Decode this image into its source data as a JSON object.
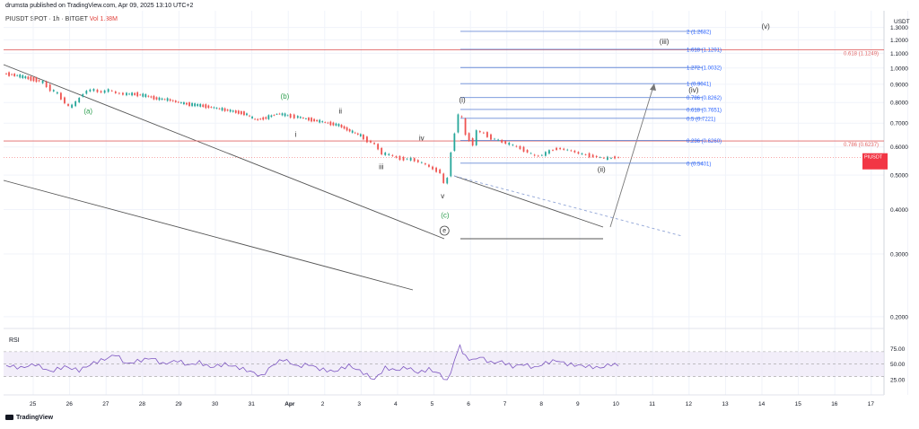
{
  "header": {
    "publisher": "drumsta published on TradingView.com, Apr 09, 2025 13:10 UTC+2",
    "symbol": "PIUSDT SPOT · 1h · BITGET",
    "volume_label": "Vol",
    "volume_value": "1.38",
    "volume_unit": "M"
  },
  "footer": {
    "brand": "TradingView"
  },
  "colors": {
    "up": "#26a69a",
    "down": "#ef5350",
    "fib": "#2962ff",
    "red_line": "#e06666",
    "trend": "#555555",
    "rsi": "#7e57c2",
    "rsi_band": "#ede7f6",
    "label_green": "#2e9e4f"
  },
  "chart_data": {
    "type": "line",
    "title": "",
    "xlabel": "",
    "ylabel": "USDT",
    "price_scale": "log",
    "ylim": [
      0.18,
      1.32
    ],
    "currency": "USDT",
    "x_ticks": [
      "25",
      "26",
      "27",
      "28",
      "29",
      "30",
      "31",
      "Apr",
      "2",
      "3",
      "4",
      "5",
      "6",
      "7",
      "8",
      "9",
      "10",
      "11",
      "12",
      "13",
      "14",
      "15",
      "16",
      "17"
    ],
    "y_ticks": [
      "1.3000",
      "1.2000",
      "1.1000",
      "1.0000",
      "0.9000",
      "0.8000",
      "0.7000",
      "0.6000",
      "0.5000",
      "0.4000",
      "0.3000",
      "0.2000"
    ],
    "series": [
      {
        "values": [
          [
            0.0,
            0.965
          ],
          [
            0.3,
            0.955
          ],
          [
            0.6,
            0.94
          ],
          [
            0.9,
            0.925
          ],
          [
            1.1,
            0.91
          ],
          [
            1.3,
            0.87
          ],
          [
            1.5,
            0.845
          ],
          [
            1.7,
            0.8
          ],
          [
            1.8,
            0.775
          ],
          [
            2.0,
            0.8
          ],
          [
            2.2,
            0.85
          ],
          [
            2.4,
            0.87
          ],
          [
            2.5,
            0.865
          ],
          [
            2.7,
            0.855
          ],
          [
            2.9,
            0.868
          ],
          [
            3.1,
            0.85
          ],
          [
            3.3,
            0.845
          ],
          [
            3.6,
            0.845
          ],
          [
            3.9,
            0.835
          ],
          [
            4.2,
            0.82
          ],
          [
            4.5,
            0.815
          ],
          [
            4.8,
            0.8
          ],
          [
            5.1,
            0.79
          ],
          [
            5.4,
            0.785
          ],
          [
            5.7,
            0.775
          ],
          [
            6.0,
            0.765
          ],
          [
            6.3,
            0.755
          ],
          [
            6.6,
            0.745
          ],
          [
            6.9,
            0.715
          ],
          [
            7.2,
            0.725
          ],
          [
            7.5,
            0.745
          ],
          [
            7.8,
            0.735
          ],
          [
            8.0,
            0.73
          ],
          [
            8.3,
            0.72
          ],
          [
            8.6,
            0.71
          ],
          [
            8.9,
            0.7
          ],
          [
            9.2,
            0.69
          ],
          [
            9.5,
            0.665
          ],
          [
            9.8,
            0.645
          ],
          [
            10.0,
            0.625
          ],
          [
            10.2,
            0.61
          ],
          [
            10.4,
            0.575
          ],
          [
            10.6,
            0.57
          ],
          [
            10.8,
            0.56
          ],
          [
            11.0,
            0.555
          ],
          [
            11.2,
            0.555
          ],
          [
            11.4,
            0.545
          ],
          [
            11.6,
            0.535
          ],
          [
            11.8,
            0.52
          ],
          [
            12.0,
            0.51
          ],
          [
            12.1,
            0.47
          ],
          [
            12.2,
            0.495
          ],
          [
            12.3,
            0.58
          ],
          [
            12.4,
            0.66
          ],
          [
            12.5,
            0.74
          ],
          [
            12.6,
            0.72
          ],
          [
            12.7,
            0.65
          ],
          [
            12.8,
            0.63
          ],
          [
            12.9,
            0.61
          ],
          [
            13.0,
            0.665
          ],
          [
            13.2,
            0.655
          ],
          [
            13.4,
            0.635
          ],
          [
            13.6,
            0.625
          ],
          [
            13.8,
            0.615
          ],
          [
            14.0,
            0.605
          ],
          [
            14.2,
            0.595
          ],
          [
            14.4,
            0.58
          ],
          [
            14.6,
            0.565
          ],
          [
            14.8,
            0.57
          ],
          [
            15.0,
            0.585
          ],
          [
            15.2,
            0.595
          ],
          [
            15.4,
            0.59
          ],
          [
            15.6,
            0.585
          ],
          [
            15.8,
            0.575
          ],
          [
            16.0,
            0.57
          ],
          [
            16.2,
            0.565
          ],
          [
            16.4,
            0.56
          ],
          [
            16.6,
            0.557
          ],
          [
            16.8,
            0.562
          ],
          [
            16.9,
            0.5596
          ]
        ]
      }
    ],
    "last_price": "0.5596",
    "last_price_countdown": "49:12",
    "fib_levels": [
      {
        "label": "2 (1.2682)",
        "value": 1.2682
      },
      {
        "label": "1.618 (1.1291)",
        "value": 1.1291
      },
      {
        "label": "1.272 (1.0032)",
        "value": 1.0032
      },
      {
        "label": "1 (0.9041)",
        "value": 0.9041
      },
      {
        "label": "0.786 (0.8262)",
        "value": 0.8262
      },
      {
        "label": "0.618 (0.7651)",
        "value": 0.7651
      },
      {
        "label": "0.5 (0.7221)",
        "value": 0.7221
      },
      {
        "label": "0.236 (0.6260)",
        "value": 0.626
      },
      {
        "label": "0 (0.5401)",
        "value": 0.5401
      }
    ],
    "horizontal_lines": [
      {
        "label": "0.618 (1.1249)",
        "value": 1.1249
      },
      {
        "label": "0.786 (0.6237)",
        "value": 0.6237
      }
    ],
    "wave_labels": [
      {
        "text": "(a)",
        "x": 2.2,
        "y": 0.745,
        "color": "green"
      },
      {
        "text": "(b)",
        "x": 7.6,
        "y": 0.82,
        "color": "green"
      },
      {
        "text": "(c)",
        "x": 12.0,
        "y": 0.38,
        "color": "green"
      },
      {
        "text": "i",
        "x": 8.0,
        "y": 0.64,
        "color": "dark"
      },
      {
        "text": "ii",
        "x": 9.2,
        "y": 0.745,
        "color": "dark"
      },
      {
        "text": "iii",
        "x": 10.3,
        "y": 0.52,
        "color": "dark"
      },
      {
        "text": "iv",
        "x": 11.4,
        "y": 0.625,
        "color": "dark"
      },
      {
        "text": "v",
        "x": 12.0,
        "y": 0.43,
        "color": "dark"
      },
      {
        "text": "(i)",
        "x": 12.5,
        "y": 0.8,
        "color": "dark"
      },
      {
        "text": "(ii)",
        "x": 16.3,
        "y": 0.51,
        "color": "dark"
      },
      {
        "text": "(iii)",
        "x": 18.0,
        "y": 1.17,
        "color": "dark"
      },
      {
        "text": "(iv)",
        "x": 18.8,
        "y": 0.855,
        "color": "dark"
      },
      {
        "text": "(v)",
        "x": 20.8,
        "y": 1.29,
        "color": "dark"
      },
      {
        "text": "e",
        "x": 12.1,
        "y": 0.345,
        "color": "circled"
      }
    ],
    "rsi": {
      "label": "RSI",
      "ylim": [
        15,
        90
      ],
      "y_ticks": [
        "75.00",
        "50.00",
        "25.00"
      ],
      "upper_band": 70,
      "lower_band": 30,
      "values": [
        [
          0.0,
          48
        ],
        [
          0.4,
          44
        ],
        [
          0.8,
          50
        ],
        [
          1.2,
          38
        ],
        [
          1.6,
          46
        ],
        [
          2.0,
          40
        ],
        [
          2.4,
          52
        ],
        [
          2.8,
          60
        ],
        [
          3.0,
          66
        ],
        [
          3.3,
          50
        ],
        [
          3.6,
          55
        ],
        [
          4.0,
          60
        ],
        [
          4.3,
          50
        ],
        [
          4.7,
          56
        ],
        [
          5.0,
          48
        ],
        [
          5.3,
          53
        ],
        [
          5.6,
          45
        ],
        [
          6.0,
          50
        ],
        [
          6.4,
          44
        ],
        [
          6.8,
          36
        ],
        [
          7.0,
          30
        ],
        [
          7.3,
          48
        ],
        [
          7.6,
          58
        ],
        [
          8.0,
          46
        ],
        [
          8.3,
          50
        ],
        [
          8.6,
          42
        ],
        [
          9.0,
          38
        ],
        [
          9.4,
          48
        ],
        [
          9.8,
          36
        ],
        [
          10.1,
          25
        ],
        [
          10.4,
          44
        ],
        [
          10.7,
          40
        ],
        [
          11.0,
          45
        ],
        [
          11.3,
          36
        ],
        [
          11.6,
          42
        ],
        [
          11.9,
          34
        ],
        [
          12.1,
          22
        ],
        [
          12.3,
          55
        ],
        [
          12.45,
          78
        ],
        [
          12.6,
          62
        ],
        [
          12.8,
          56
        ],
        [
          13.0,
          62
        ],
        [
          13.3,
          52
        ],
        [
          13.6,
          54
        ],
        [
          13.9,
          46
        ],
        [
          14.2,
          50
        ],
        [
          14.5,
          44
        ],
        [
          14.8,
          52
        ],
        [
          15.1,
          56
        ],
        [
          15.4,
          50
        ],
        [
          15.7,
          48
        ],
        [
          16.0,
          46
        ],
        [
          16.3,
          44
        ],
        [
          16.6,
          50
        ],
        [
          16.9,
          47
        ]
      ]
    },
    "legend": "none",
    "grid": true
  }
}
